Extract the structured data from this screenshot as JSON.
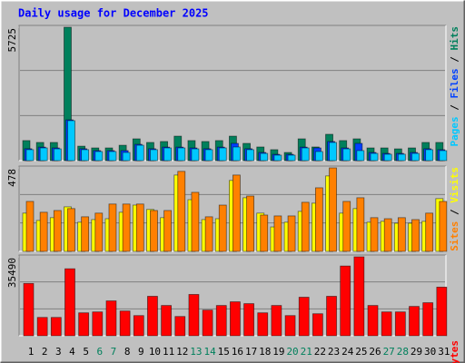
{
  "chart_data": [
    {
      "type": "bar",
      "title": "Daily usage for December 2025",
      "legend_separator": " / ",
      "ylim": [
        0,
        5725
      ],
      "yticks": [
        5725
      ],
      "series": [
        {
          "name": "Pages",
          "color": "#00c8ff",
          "values": [
            470,
            545,
            505,
            1715,
            470,
            390,
            390,
            350,
            660,
            470,
            545,
            545,
            505,
            470,
            545,
            585,
            470,
            310,
            235,
            235,
            545,
            390,
            780,
            505,
            430,
            310,
            275,
            275,
            310,
            470,
            430
          ]
        },
        {
          "name": "Files",
          "color": "#0040ff",
          "values": [
            510,
            580,
            545,
            1750,
            510,
            430,
            430,
            430,
            700,
            510,
            580,
            580,
            545,
            510,
            580,
            740,
            510,
            350,
            270,
            270,
            580,
            545,
            820,
            545,
            740,
            350,
            310,
            310,
            350,
            510,
            470
          ]
        },
        {
          "name": "Hits",
          "color": "#00805c",
          "values": [
            860,
            780,
            780,
            5725,
            620,
            545,
            545,
            660,
            935,
            780,
            820,
            1050,
            860,
            820,
            860,
            1050,
            740,
            585,
            470,
            350,
            935,
            585,
            1130,
            860,
            935,
            545,
            545,
            505,
            545,
            780,
            780
          ]
        }
      ]
    },
    {
      "type": "bar",
      "ylim": [
        0,
        478
      ],
      "yticks": [
        478
      ],
      "series": [
        {
          "name": "Sites",
          "color": "#ff8000",
          "values": [
            286,
            224,
            234,
            245,
            198,
            219,
            271,
            271,
            271,
            234,
            234,
            458,
            338,
            198,
            265,
            437,
            317,
            208,
            203,
            203,
            281,
            364,
            478,
            286,
            307,
            193,
            187,
            193,
            182,
            219,
            286
          ]
        },
        {
          "name": "Visits",
          "color": "#ffff00",
          "values": [
            219,
            177,
            193,
            255,
            167,
            182,
            187,
            224,
            265,
            240,
            193,
            437,
            296,
            182,
            187,
            406,
            307,
            219,
            140,
            167,
            229,
            276,
            432,
            219,
            245,
            167,
            172,
            161,
            161,
            172,
            302
          ]
        }
      ]
    },
    {
      "type": "bar",
      "ylim": [
        0,
        35490
      ],
      "yticks": [
        35490
      ],
      "categories": [
        "1",
        "2",
        "3",
        "4",
        "5",
        "6",
        "7",
        "8",
        "9",
        "10",
        "11",
        "12",
        "13",
        "14",
        "15",
        "16",
        "17",
        "18",
        "19",
        "20",
        "21",
        "22",
        "23",
        "24",
        "25",
        "26",
        "27",
        "28",
        "29",
        "30",
        "31"
      ],
      "category_colors": [
        "#000000",
        "#000000",
        "#000000",
        "#000000",
        "#000000",
        "#00805c",
        "#00805c",
        "#000000",
        "#000000",
        "#000000",
        "#000000",
        "#000000",
        "#00805c",
        "#00805c",
        "#000000",
        "#000000",
        "#000000",
        "#000000",
        "#000000",
        "#00805c",
        "#00805c",
        "#000000",
        "#000000",
        "#000000",
        "#000000",
        "#000000",
        "#00805c",
        "#00805c",
        "#000000",
        "#000000",
        "#000000"
      ],
      "series": [
        {
          "name": "KBytes",
          "color": "#ff0000",
          "values": [
            23520,
            8250,
            8250,
            30125,
            10315,
            10725,
            15680,
            11140,
            9080,
            17750,
            13620,
            8670,
            18570,
            11550,
            13620,
            15270,
            14440,
            10315,
            13620,
            9080,
            17330,
            9905,
            17750,
            31360,
            35490,
            13620,
            10725,
            10725,
            13200,
            14860,
            21870
          ]
        }
      ]
    }
  ]
}
